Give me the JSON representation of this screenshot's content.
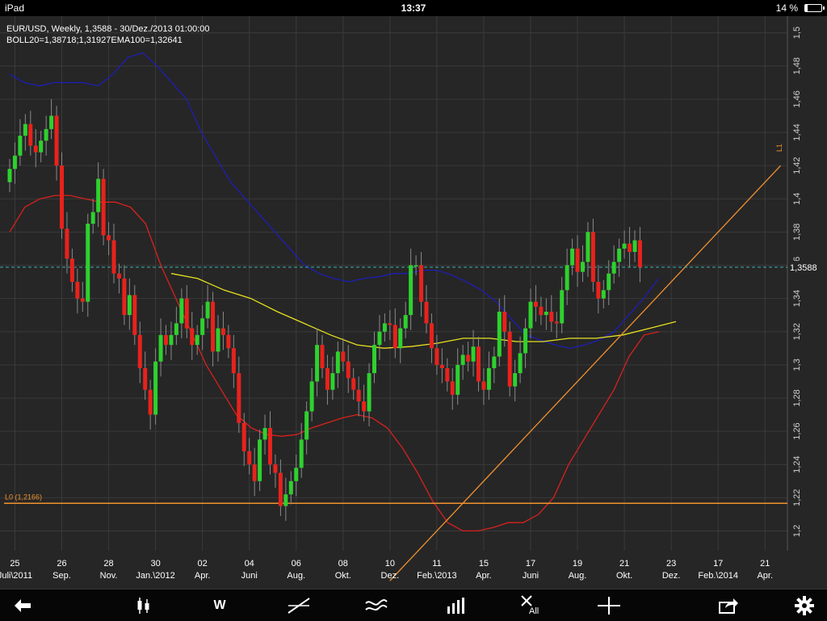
{
  "status_bar": {
    "carrier": "iPad",
    "time": "13:37",
    "battery": "14 %"
  },
  "header": {
    "line1": "EUR/USD, Weekly, 1,3588 - 30/Dez./2013 01:00:00",
    "line2": "BOLL20=1,38718;1,31927EMA100=1,32641"
  },
  "current_price_label": "1,3588",
  "level_line_label": "L0 (1,2166)",
  "trend_line_label": "L1",
  "toolbar": {
    "back": "back-arrow-icon",
    "candle": "candlestick-icon",
    "interval": "W",
    "line": "draw-line-icon",
    "indicators": "indicator-icon",
    "volume": "bar-chart-icon",
    "clear": "All",
    "crosshair": "crosshair-icon",
    "share": "share-icon",
    "settings": "gear-icon"
  },
  "colors": {
    "bull": "#2ed12e",
    "bear": "#e8221c",
    "boll_upper": "#1e1eb4",
    "boll_lower": "#d9211d",
    "ema": "#e6e020",
    "trend": "#f0922e",
    "price_line": "#3fb3b3"
  },
  "chart_data": {
    "type": "candlestick",
    "title": "EUR/USD, Weekly",
    "ylim": [
      1.19,
      1.51
    ],
    "y_ticks": [
      "1,2",
      "1,22",
      "1,24",
      "1,26",
      "1,28",
      "1,3",
      "1,32",
      "1,34",
      "1,36",
      "1,38",
      "1,4",
      "1,42",
      "1,44",
      "1,46",
      "1,48",
      "1,5"
    ],
    "y_tick_values": [
      1.2,
      1.22,
      1.24,
      1.26,
      1.28,
      1.3,
      1.32,
      1.34,
      1.36,
      1.38,
      1.4,
      1.42,
      1.44,
      1.46,
      1.48,
      1.5
    ],
    "x_ticks": [
      {
        "day": "25",
        "label": "Juli\\2011",
        "i": 1
      },
      {
        "day": "26",
        "label": "Sep.",
        "i": 10
      },
      {
        "day": "28",
        "label": "Nov.",
        "i": 19
      },
      {
        "day": "30",
        "label": "Jan.\\2012",
        "i": 28
      },
      {
        "day": "02",
        "label": "Apr.",
        "i": 37
      },
      {
        "day": "04",
        "label": "Juni",
        "i": 46
      },
      {
        "day": "06",
        "label": "Aug.",
        "i": 55
      },
      {
        "day": "08",
        "label": "Okt.",
        "i": 64
      },
      {
        "day": "10",
        "label": "Dez.",
        "i": 73
      },
      {
        "day": "11",
        "label": "Feb.\\2013",
        "i": 82
      },
      {
        "day": "15",
        "label": "Apr.",
        "i": 91
      },
      {
        "day": "17",
        "label": "Juni",
        "i": 100
      },
      {
        "day": "19",
        "label": "Aug.",
        "i": 109
      },
      {
        "day": "21",
        "label": "Okt.",
        "i": 118
      },
      {
        "day": "23",
        "label": "Dez.",
        "i": 127
      },
      {
        "day": "17",
        "label": "Feb.\\2014",
        "i": 136
      },
      {
        "day": "21",
        "label": "Apr.",
        "i": 145
      }
    ],
    "current_price": 1.3588,
    "level_line": 1.2166,
    "trend_line": {
      "from": {
        "i": 73,
        "value": 1.17
      },
      "to": {
        "i": 148,
        "value": 1.42
      }
    },
    "closes": [
      1.418,
      1.426,
      1.438,
      1.445,
      1.432,
      1.428,
      1.435,
      1.442,
      1.45,
      1.42,
      1.382,
      1.364,
      1.35,
      1.34,
      1.338,
      1.385,
      1.392,
      1.412,
      1.378,
      1.375,
      1.355,
      1.352,
      1.33,
      1.342,
      1.318,
      1.298,
      1.285,
      1.27,
      1.302,
      1.318,
      1.312,
      1.318,
      1.325,
      1.34,
      1.322,
      1.312,
      1.318,
      1.328,
      1.338,
      1.308,
      1.322,
      1.318,
      1.31,
      1.295,
      1.265,
      1.248,
      1.24,
      1.23,
      1.255,
      1.262,
      1.24,
      1.235,
      1.215,
      1.222,
      1.23,
      1.238,
      1.255,
      1.272,
      1.29,
      1.312,
      1.298,
      1.285,
      1.295,
      1.308,
      1.302,
      1.292,
      1.285,
      1.278,
      1.272,
      1.295,
      1.312,
      1.32,
      1.325,
      1.324,
      1.31,
      1.322,
      1.33,
      1.36,
      1.36,
      1.338,
      1.325,
      1.31,
      1.3,
      1.298,
      1.29,
      1.282,
      1.3,
      1.306,
      1.302,
      1.311,
      1.29,
      1.285,
      1.298,
      1.305,
      1.332,
      1.32,
      1.287,
      1.295,
      1.307,
      1.322,
      1.338,
      1.335,
      1.33,
      1.332,
      1.326,
      1.325,
      1.345,
      1.36,
      1.37,
      1.356,
      1.362,
      1.38,
      1.35,
      1.34,
      1.345,
      1.355,
      1.362,
      1.37,
      1.373,
      1.368,
      1.375,
      1.3588
    ],
    "opens": [
      1.41,
      1.418,
      1.426,
      1.438,
      1.445,
      1.432,
      1.428,
      1.435,
      1.442,
      1.45,
      1.42,
      1.382,
      1.364,
      1.35,
      1.34,
      1.338,
      1.385,
      1.392,
      1.412,
      1.378,
      1.375,
      1.355,
      1.352,
      1.33,
      1.342,
      1.318,
      1.298,
      1.285,
      1.27,
      1.302,
      1.318,
      1.312,
      1.318,
      1.325,
      1.34,
      1.322,
      1.312,
      1.318,
      1.328,
      1.338,
      1.308,
      1.322,
      1.318,
      1.31,
      1.295,
      1.265,
      1.248,
      1.24,
      1.23,
      1.255,
      1.262,
      1.24,
      1.235,
      1.215,
      1.222,
      1.23,
      1.238,
      1.255,
      1.272,
      1.29,
      1.312,
      1.298,
      1.285,
      1.295,
      1.308,
      1.302,
      1.292,
      1.285,
      1.278,
      1.272,
      1.295,
      1.312,
      1.32,
      1.325,
      1.324,
      1.31,
      1.322,
      1.33,
      1.36,
      1.36,
      1.338,
      1.325,
      1.31,
      1.3,
      1.298,
      1.29,
      1.282,
      1.3,
      1.306,
      1.302,
      1.311,
      1.29,
      1.285,
      1.298,
      1.305,
      1.332,
      1.32,
      1.287,
      1.295,
      1.307,
      1.322,
      1.338,
      1.335,
      1.33,
      1.332,
      1.326,
      1.325,
      1.345,
      1.36,
      1.37,
      1.356,
      1.362,
      1.38,
      1.35,
      1.34,
      1.345,
      1.355,
      1.362,
      1.37,
      1.373,
      1.368,
      1.375
    ],
    "boll_upper": [
      1.475,
      1.47,
      1.468,
      1.47,
      1.47,
      1.47,
      1.468,
      1.475,
      1.485,
      1.488,
      1.48,
      1.47,
      1.46,
      1.44,
      1.425,
      1.41,
      1.4,
      1.39,
      1.38,
      1.37,
      1.36,
      1.355,
      1.352,
      1.35,
      1.352,
      1.353,
      1.355,
      1.355,
      1.357,
      1.357,
      1.354,
      1.35,
      1.345,
      1.338,
      1.328,
      1.318,
      1.315,
      1.312,
      1.31,
      1.312,
      1.315,
      1.32,
      1.33,
      1.34,
      1.352
    ],
    "boll_upper_start": 0,
    "boll_lower": [
      1.38,
      1.395,
      1.4,
      1.402,
      1.402,
      1.4,
      1.398,
      1.398,
      1.395,
      1.385,
      1.36,
      1.34,
      1.32,
      1.3,
      1.285,
      1.27,
      1.262,
      1.258,
      1.257,
      1.258,
      1.262,
      1.265,
      1.268,
      1.27,
      1.268,
      1.262,
      1.25,
      1.235,
      1.218,
      1.205,
      1.2,
      1.2,
      1.202,
      1.205,
      1.205,
      1.21,
      1.22,
      1.24,
      1.255,
      1.27,
      1.285,
      1.305,
      1.318,
      1.32
    ],
    "ema100": [
      1.355,
      1.352,
      1.345,
      1.34,
      1.332,
      1.325,
      1.318,
      1.312,
      1.31,
      1.311,
      1.313,
      1.316,
      1.316,
      1.314,
      1.314,
      1.316,
      1.316,
      1.318,
      1.322,
      1.326
    ]
  }
}
